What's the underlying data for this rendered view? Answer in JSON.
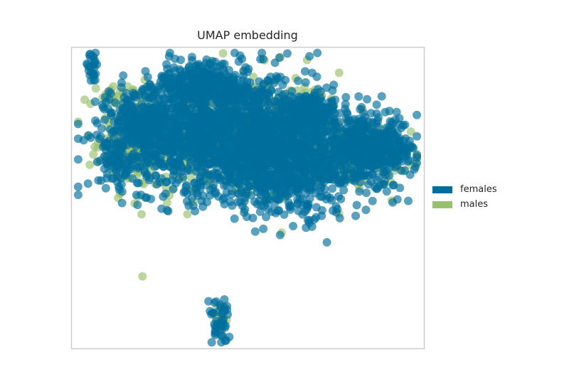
{
  "chart_data": {
    "type": "scatter",
    "title": "UMAP embedding",
    "xlabel": "",
    "ylabel": "",
    "grid": false,
    "axes_ticks": false,
    "legend_position": "right",
    "xlim": [
      0,
      100
    ],
    "ylim": [
      0,
      100
    ],
    "series": [
      {
        "name": "females",
        "color": "#006e9c",
        "clusters": [
          {
            "cx": 6,
            "cy": 93,
            "sx": 1.2,
            "sy": 2.5,
            "n": 25
          },
          {
            "cx": 45,
            "cy": 72,
            "sx": 15,
            "sy": 10,
            "n": 1500
          },
          {
            "cx": 62,
            "cy": 60,
            "sx": 12,
            "sy": 8,
            "n": 650
          },
          {
            "cx": 84,
            "cy": 66,
            "sx": 7,
            "sy": 5,
            "n": 450
          },
          {
            "cx": 22,
            "cy": 73,
            "sx": 6,
            "sy": 7,
            "n": 350
          },
          {
            "cx": 38,
            "cy": 87,
            "sx": 6,
            "sy": 3.5,
            "n": 260
          },
          {
            "cx": 13,
            "cy": 62,
            "sx": 2.5,
            "sy": 3.5,
            "n": 70
          },
          {
            "cx": 68,
            "cy": 78,
            "sx": 4,
            "sy": 3,
            "n": 160
          },
          {
            "cx": 42,
            "cy": 10,
            "sx": 1.5,
            "sy": 4,
            "n": 45
          }
        ]
      },
      {
        "name": "males",
        "color": "#98c06f",
        "clusters": [
          {
            "cx": 45,
            "cy": 70,
            "sx": 16,
            "sy": 11,
            "n": 420
          },
          {
            "cx": 18,
            "cy": 70,
            "sx": 5,
            "sy": 8,
            "n": 130
          },
          {
            "cx": 80,
            "cy": 64,
            "sx": 8,
            "sy": 5,
            "n": 140
          },
          {
            "cx": 13,
            "cy": 84,
            "sx": 2.5,
            "sy": 2,
            "n": 12
          },
          {
            "cx": 42,
            "cy": 10,
            "sx": 1.5,
            "sy": 4,
            "n": 10
          }
        ]
      }
    ]
  }
}
